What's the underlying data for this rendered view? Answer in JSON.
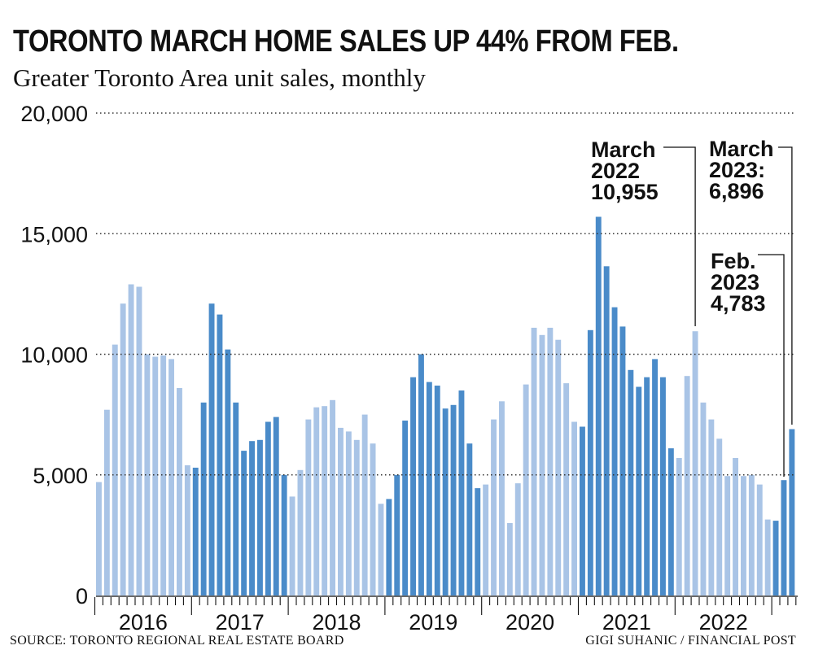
{
  "title": "TORONTO MARCH HOME SALES UP 44% FROM FEB.",
  "subtitle": "Greater Toronto Area unit sales, monthly",
  "source": "SOURCE: TORONTO REGIONAL REAL ESTATE BOARD",
  "credit": "GIGI SUHANIC / FINANCIAL POST",
  "colors": {
    "light": "#a9c4e6",
    "dark": "#4a8bc9",
    "grid": "#333333",
    "text": "#111111"
  },
  "chart_data": {
    "type": "bar",
    "title": "TORONTO MARCH HOME SALES UP 44% FROM FEB.",
    "subtitle": "Greater Toronto Area unit sales, monthly",
    "xlabel": "",
    "ylabel": "",
    "ylim": [
      0,
      20000
    ],
    "yticks": [
      0,
      5000,
      10000,
      15000,
      20000
    ],
    "ytick_labels": [
      "0",
      "5,000",
      "10,000",
      "15,000",
      "20,000"
    ],
    "grid": "horizontal dotted",
    "x_start": "2016-01",
    "year_labels": [
      "2016",
      "2017",
      "2018",
      "2019",
      "2020",
      "2021",
      "2022"
    ],
    "series": [
      {
        "values": [
          4700,
          7700,
          10400,
          12100,
          12900,
          12800,
          10000,
          9900,
          9950,
          9800,
          8600,
          5400,
          5300,
          8000,
          12100,
          11650,
          10200,
          8000,
          6000,
          6400,
          6450,
          7200,
          7400,
          5000,
          4100,
          5200,
          7300,
          7800,
          7850,
          8100,
          6950,
          6800,
          6450,
          7500,
          6300,
          3800,
          4000,
          5000,
          7250,
          9050,
          10000,
          8850,
          8700,
          7750,
          7900,
          8500,
          6300,
          4450,
          4600,
          7300,
          8050,
          3000,
          4650,
          8750,
          11100,
          10800,
          11100,
          10600,
          8800,
          7200,
          7000,
          11000,
          15700,
          13650,
          11950,
          11150,
          9350,
          8650,
          9050,
          9800,
          9050,
          6100,
          5700,
          9100,
          10955,
          8000,
          7300,
          6500,
          4950,
          5700,
          4950,
          5000,
          4600,
          3150,
          3100,
          4783,
          6896
        ]
      }
    ],
    "annotations": [
      {
        "label": [
          "March",
          "2022",
          "10,955"
        ],
        "x": "2022-03",
        "y": 10955
      },
      {
        "label": [
          "March",
          "2023:",
          "6,896"
        ],
        "x": "2023-03",
        "y": 6896
      },
      {
        "label": [
          "Feb.",
          "2023",
          "4,783"
        ],
        "x": "2023-02",
        "y": 4783
      }
    ]
  }
}
